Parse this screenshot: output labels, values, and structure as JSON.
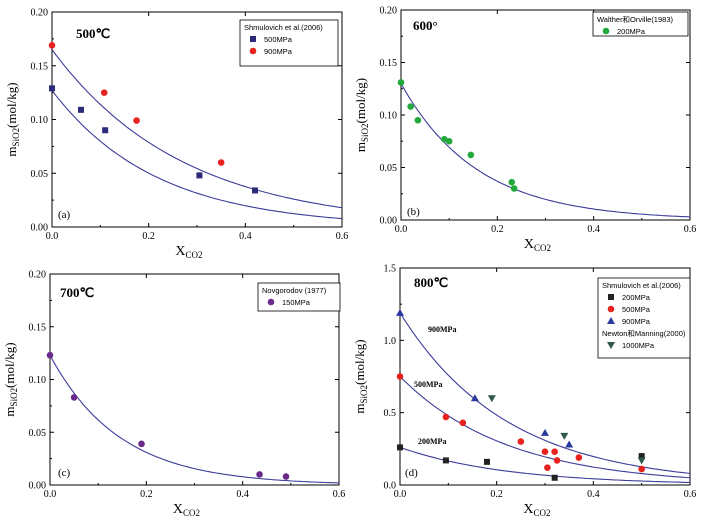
{
  "chart_data": [
    {
      "type": "scatter",
      "title": "500℃",
      "panel_label": "(a)",
      "xlabel": "X",
      "xlabel_sub": "CO2",
      "ylabel": "m",
      "ylabel_sub": "SiO2",
      "ylabel_suffix": "(mol/kg)",
      "xlim": [
        0,
        0.6
      ],
      "ylim": [
        0,
        0.2
      ],
      "xticks": [
        "0.0",
        "0.2",
        "0.4",
        "0.6"
      ],
      "yticks": [
        "0.00",
        "0.05",
        "0.10",
        "0.15",
        "0.20"
      ],
      "legend_title": "Shmulovich et al.(2006)",
      "series": [
        {
          "name": "500MPa",
          "marker": "square",
          "color": "#2b2b7a",
          "x": [
            0.0,
            0.06,
            0.11,
            0.305,
            0.42
          ],
          "y": [
            0.129,
            0.109,
            0.09,
            0.048,
            0.034
          ]
        },
        {
          "name": "900MPa",
          "marker": "circle",
          "color": "#e8231f",
          "x": [
            0.0,
            0.108,
            0.175,
            0.35
          ],
          "y": [
            0.169,
            0.125,
            0.099,
            0.06
          ]
        }
      ],
      "curves": [
        {
          "a": 0.165,
          "k": 3.7
        },
        {
          "a": 0.127,
          "k": 4.65
        }
      ],
      "annotations": []
    },
    {
      "type": "scatter",
      "title": "600°",
      "panel_label": "(b)",
      "xlabel": "X",
      "xlabel_sub": "CO2",
      "ylabel": "m",
      "ylabel_sub": "SiO2",
      "ylabel_suffix": "(mol/kg)",
      "xlim": [
        0,
        0.6
      ],
      "ylim": [
        0,
        0.2
      ],
      "xticks": [
        "0.0",
        "0.2",
        "0.4",
        "0.6"
      ],
      "yticks": [
        "0.00",
        "0.05",
        "0.10",
        "0.15",
        "0.20"
      ],
      "legend_title": "Walther和Orville(1983)",
      "series": [
        {
          "name": "200MPa",
          "marker": "circle",
          "color": "#22a83c",
          "x": [
            0.0,
            0.02,
            0.035,
            0.09,
            0.1,
            0.145,
            0.23,
            0.235
          ],
          "y": [
            0.131,
            0.108,
            0.095,
            0.077,
            0.075,
            0.062,
            0.036,
            0.03
          ]
        }
      ],
      "curves": [
        {
          "a": 0.13,
          "k": 6.3
        }
      ],
      "annotations": []
    },
    {
      "type": "scatter",
      "title": "700℃",
      "panel_label": "(c)",
      "xlabel": "X",
      "xlabel_sub": "CO2",
      "ylabel": "m",
      "ylabel_sub": "SiO2",
      "ylabel_suffix": "(mol/kg)",
      "xlim": [
        0,
        0.6
      ],
      "ylim": [
        0,
        0.2
      ],
      "xticks": [
        "0.0",
        "0.2",
        "0.4",
        "0.6"
      ],
      "yticks": [
        "0.00",
        "0.05",
        "0.10",
        "0.15",
        "0.20"
      ],
      "legend_title": "Novgorodov (1977)",
      "series": [
        {
          "name": "150MPa",
          "marker": "circle",
          "color": "#6a2a8a",
          "x": [
            0.0,
            0.05,
            0.19,
            0.435,
            0.49
          ],
          "y": [
            0.123,
            0.083,
            0.039,
            0.01,
            0.008
          ]
        }
      ],
      "curves": [
        {
          "a": 0.123,
          "k": 6.9
        }
      ],
      "annotations": []
    },
    {
      "type": "scatter",
      "title": "800℃",
      "panel_label": "(d)",
      "xlabel": "X",
      "xlabel_sub": "CO2",
      "ylabel": "m",
      "ylabel_sub": "SiO2",
      "ylabel_suffix": "(mol/kg)",
      "xlim": [
        0,
        0.6
      ],
      "ylim": [
        0,
        1.5
      ],
      "xticks": [
        "0.0",
        "0.2",
        "0.4",
        "0.6"
      ],
      "yticks": [
        "0.0",
        "0.5",
        "1.0",
        "1.5"
      ],
      "legend_title": "Shmulovich et al.(2006)",
      "legend_title2": "Newton和Manning(2000)",
      "series": [
        {
          "name": "200MPa",
          "marker": "square",
          "color": "#222222",
          "x": [
            0.0,
            0.095,
            0.18,
            0.32,
            0.5
          ],
          "y": [
            0.26,
            0.17,
            0.16,
            0.05,
            0.2
          ]
        },
        {
          "name": "500MPa",
          "marker": "circle",
          "color": "#e8231f",
          "x": [
            0.0,
            0.095,
            0.13,
            0.25,
            0.3,
            0.305,
            0.32,
            0.325,
            0.37,
            0.5
          ],
          "y": [
            0.75,
            0.47,
            0.43,
            0.3,
            0.23,
            0.12,
            0.23,
            0.17,
            0.19,
            0.11
          ]
        },
        {
          "name": "900MPa",
          "marker": "triangle-up",
          "color": "#2a3a9e",
          "x": [
            0.0,
            0.155,
            0.3,
            0.35
          ],
          "y": [
            1.19,
            0.6,
            0.36,
            0.28
          ]
        },
        {
          "name": "1000MPa",
          "marker": "triangle-down",
          "color": "#2f5a48",
          "x": [
            0.19,
            0.34,
            0.5
          ],
          "y": [
            0.6,
            0.34,
            0.17
          ]
        }
      ],
      "curves": [
        {
          "a": 1.19,
          "k": 4.5
        },
        {
          "a": 0.75,
          "k": 4.5
        },
        {
          "a": 0.26,
          "k": 4.5
        }
      ],
      "annotations": [
        "900MPa",
        "500MPa",
        "200MPa"
      ]
    }
  ]
}
